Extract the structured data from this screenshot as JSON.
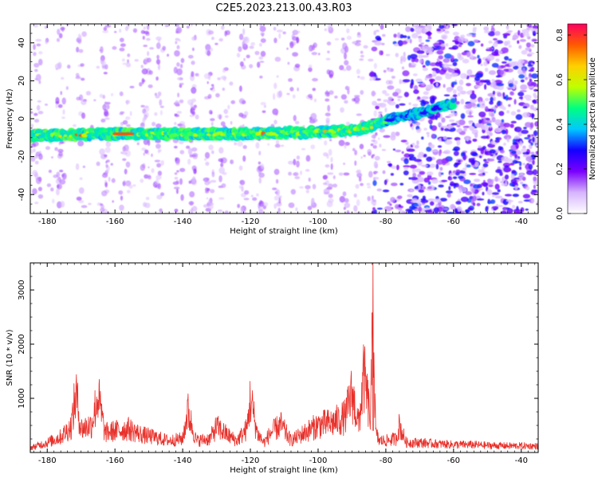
{
  "page_title": "C2E5.2023.213.00.43.R03",
  "colors": {
    "snr_line": "#e8302a",
    "background": "#ffffff",
    "axis": "#000000"
  },
  "chart_data": [
    {
      "type": "heatmap",
      "title": "",
      "xlabel": "Height of straight line (km)",
      "ylabel": "Frequency (Hz)",
      "xlim": [
        -185,
        -35
      ],
      "ylim": [
        -50,
        50
      ],
      "xticks": [
        -180,
        -160,
        -140,
        -120,
        -100,
        -80,
        -60,
        -40
      ],
      "yticks": [
        -40,
        -20,
        0,
        20,
        40
      ],
      "grid": false,
      "colorbar": {
        "label": "Normalized spectral amplitude",
        "range": [
          0,
          0.85
        ],
        "ticks": [
          0.0,
          0.2,
          0.4,
          0.6,
          0.8
        ],
        "colormap": [
          "#ffffff",
          "#d6b4ff",
          "#7a00ff",
          "#1400ff",
          "#00c8ff",
          "#00ff80",
          "#bfff00",
          "#ffd000",
          "#ff5a00",
          "#ff0060"
        ]
      },
      "ridge": {
        "description": "main Doppler trace",
        "points": [
          [
            -185,
            -9
          ],
          [
            -160,
            -8
          ],
          [
            -140,
            -8
          ],
          [
            -120,
            -8
          ],
          [
            -100,
            -7
          ],
          [
            -90,
            -6
          ],
          [
            -84,
            -4
          ],
          [
            -78,
            0
          ],
          [
            -70,
            3
          ],
          [
            -60,
            8
          ]
        ],
        "peak_amplitude": 0.85
      }
    },
    {
      "type": "line",
      "title": "",
      "xlabel": "Height of straight line (km)",
      "ylabel": "SNR (10 * v/v)",
      "xlim": [
        -185,
        -35
      ],
      "ylim": [
        0,
        3500
      ],
      "xticks": [
        -180,
        -160,
        -140,
        -120,
        -100,
        -80,
        -60,
        -40
      ],
      "yticks": [
        1000,
        2000,
        3000
      ],
      "grid": false,
      "series": [
        {
          "x": [
            -185,
            -180,
            -176,
            -173,
            -171.5,
            -170,
            -167,
            -165,
            -163,
            -160,
            -156,
            -152,
            -148,
            -144,
            -140,
            -138.5,
            -136,
            -132,
            -130,
            -126,
            -124,
            -121,
            -120,
            -118,
            -116,
            -114,
            -111,
            -108,
            -104,
            -100,
            -96,
            -92,
            -90,
            -88,
            -86.5,
            -85.5,
            -84.5,
            -83.8,
            -83,
            -82,
            -80,
            -77,
            -76,
            -74,
            -70,
            -65,
            -60,
            -55,
            -50,
            -45,
            -40,
            -35
          ],
          "values": [
            120,
            250,
            400,
            650,
            1500,
            600,
            700,
            1450,
            500,
            550,
            600,
            450,
            380,
            300,
            350,
            1050,
            300,
            350,
            650,
            400,
            300,
            600,
            1380,
            500,
            250,
            500,
            700,
            300,
            500,
            700,
            750,
            900,
            1500,
            700,
            1950,
            1400,
            800,
            3550,
            500,
            300,
            300,
            350,
            700,
            250,
            250,
            220,
            200,
            200,
            180,
            170,
            170,
            160
          ]
        }
      ]
    }
  ]
}
